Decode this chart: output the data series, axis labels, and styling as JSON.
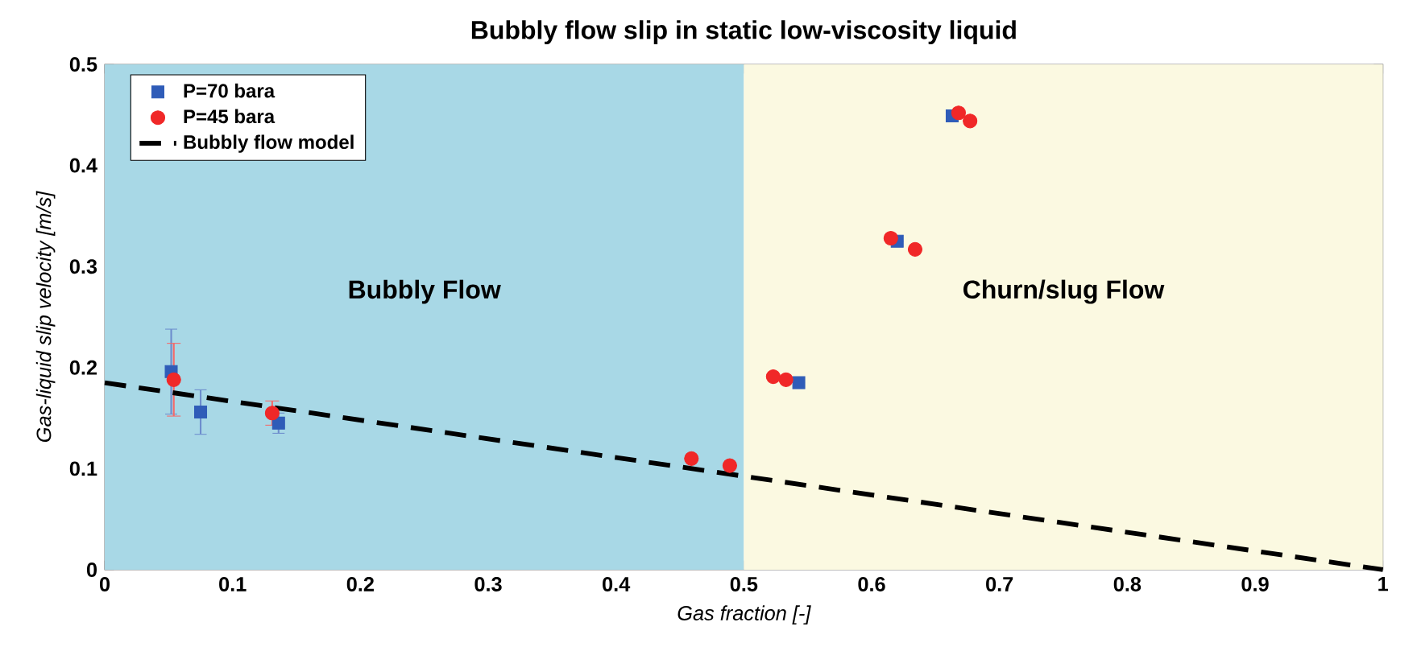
{
  "chart_data": {
    "type": "scatter",
    "title": "Bubbly flow slip in static low-viscosity liquid",
    "xlabel": "Gas fraction [-]",
    "ylabel": "Gas-liquid slip velocity [m/s]",
    "xlim": [
      0,
      1
    ],
    "ylim": [
      0,
      0.5
    ],
    "xticks": [
      0,
      0.1,
      0.2,
      0.3,
      0.4,
      0.5,
      0.6,
      0.7,
      0.8,
      0.9,
      1
    ],
    "yticks": [
      0,
      0.1,
      0.2,
      0.3,
      0.4,
      0.5
    ],
    "legend": "top left",
    "grid": false,
    "bands": [
      {
        "axis": "x",
        "from": 0,
        "to": 0.5,
        "label": "Bubbly Flow",
        "color": "#a8d8e6"
      },
      {
        "axis": "x",
        "from": 0.5,
        "to": 1,
        "label": "Churn/slug Flow",
        "color": "#fbf9e1"
      }
    ],
    "series": [
      {
        "name": "P=70 bara",
        "marker": "square",
        "color": "#2f5cb8",
        "x": [
          0.052,
          0.075,
          0.136,
          0.543,
          0.62,
          0.663
        ],
        "values": [
          0.196,
          0.156,
          0.145,
          0.185,
          0.325,
          0.449
        ],
        "errors": [
          0.042,
          0.022,
          0.01,
          null,
          null,
          null
        ]
      },
      {
        "name": "P=45 bara",
        "marker": "circle",
        "color": "#f02828",
        "x": [
          0.054,
          0.131,
          0.459,
          0.489,
          0.523,
          0.533,
          0.615,
          0.634,
          0.668,
          0.677
        ],
        "values": [
          0.188,
          0.155,
          0.11,
          0.103,
          0.191,
          0.188,
          0.328,
          0.317,
          0.452,
          0.444
        ],
        "errors": [
          0.036,
          0.012,
          null,
          null,
          null,
          null,
          null,
          null,
          null,
          null
        ]
      },
      {
        "name": "Bubbly flow model",
        "type": "line",
        "marker": "none",
        "line_style": "dashed",
        "color": "#000000",
        "x": [
          0,
          1
        ],
        "values": [
          0.185,
          0
        ]
      }
    ]
  }
}
